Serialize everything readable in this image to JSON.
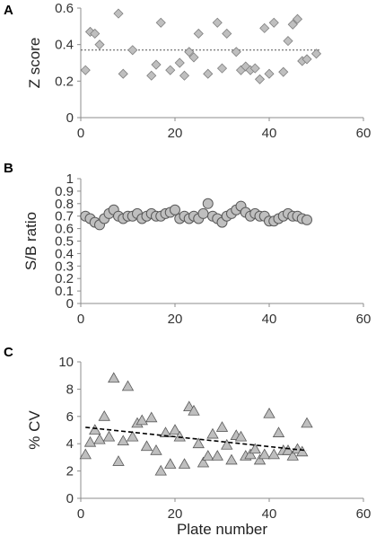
{
  "chart_data": [
    {
      "panel": "A",
      "type": "scatter",
      "marker": "diamond",
      "ylabel": "Z score",
      "xlim": [
        0,
        60
      ],
      "ylim": [
        0,
        0.6
      ],
      "xticks": [
        0,
        20,
        40,
        60
      ],
      "yticks": [
        0,
        0.2,
        0.4,
        0.6
      ],
      "ytick_labels": [
        "0",
        "0.2",
        "0.4",
        "0.6"
      ],
      "reference_line": {
        "y": 0.37,
        "style": "dotted"
      },
      "points": [
        [
          1,
          0.26
        ],
        [
          2,
          0.47
        ],
        [
          3,
          0.46
        ],
        [
          4,
          0.4
        ],
        [
          8,
          0.57
        ],
        [
          9,
          0.24
        ],
        [
          11,
          0.37
        ],
        [
          15,
          0.23
        ],
        [
          16,
          0.29
        ],
        [
          17,
          0.52
        ],
        [
          19,
          0.26
        ],
        [
          21,
          0.3
        ],
        [
          22,
          0.23
        ],
        [
          23,
          0.36
        ],
        [
          24,
          0.33
        ],
        [
          25,
          0.46
        ],
        [
          27,
          0.24
        ],
        [
          29,
          0.52
        ],
        [
          30,
          0.27
        ],
        [
          31,
          0.46
        ],
        [
          33,
          0.36
        ],
        [
          34,
          0.26
        ],
        [
          35,
          0.28
        ],
        [
          36,
          0.26
        ],
        [
          37,
          0.27
        ],
        [
          38,
          0.21
        ],
        [
          39,
          0.49
        ],
        [
          40,
          0.24
        ],
        [
          41,
          0.52
        ],
        [
          43,
          0.25
        ],
        [
          44,
          0.42
        ],
        [
          45,
          0.51
        ],
        [
          46,
          0.54
        ],
        [
          47,
          0.31
        ],
        [
          48,
          0.32
        ],
        [
          50,
          0.35
        ]
      ],
      "colors": {
        "marker_fill": "#bfbfbf",
        "marker_stroke": "#7f7f7f"
      }
    },
    {
      "panel": "B",
      "type": "scatter",
      "marker": "circle",
      "ylabel": "S/B ratio",
      "xlim": [
        0,
        60
      ],
      "ylim": [
        0,
        1
      ],
      "xticks": [
        0,
        20,
        40,
        60
      ],
      "yticks": [
        0,
        0.1,
        0.2,
        0.3,
        0.4,
        0.5,
        0.6,
        0.7,
        0.8,
        0.9,
        1
      ],
      "ytick_labels": [
        "0",
        "0.1",
        "0.2",
        "0.3",
        "0.4",
        "0.5",
        "0.6",
        "0.7",
        "0.8",
        "0.9",
        "1"
      ],
      "points": [
        [
          1,
          0.7
        ],
        [
          2,
          0.68
        ],
        [
          3,
          0.65
        ],
        [
          4,
          0.63
        ],
        [
          5,
          0.68
        ],
        [
          6,
          0.72
        ],
        [
          7,
          0.75
        ],
        [
          8,
          0.7
        ],
        [
          9,
          0.68
        ],
        [
          10,
          0.7
        ],
        [
          11,
          0.7
        ],
        [
          12,
          0.72
        ],
        [
          13,
          0.68
        ],
        [
          14,
          0.7
        ],
        [
          15,
          0.72
        ],
        [
          16,
          0.7
        ],
        [
          17,
          0.7
        ],
        [
          18,
          0.72
        ],
        [
          19,
          0.73
        ],
        [
          20,
          0.75
        ],
        [
          21,
          0.68
        ],
        [
          22,
          0.7
        ],
        [
          23,
          0.68
        ],
        [
          24,
          0.7
        ],
        [
          25,
          0.68
        ],
        [
          26,
          0.72
        ],
        [
          27,
          0.8
        ],
        [
          28,
          0.7
        ],
        [
          29,
          0.68
        ],
        [
          30,
          0.65
        ],
        [
          31,
          0.7
        ],
        [
          32,
          0.72
        ],
        [
          33,
          0.75
        ],
        [
          34,
          0.78
        ],
        [
          35,
          0.73
        ],
        [
          36,
          0.7
        ],
        [
          37,
          0.72
        ],
        [
          38,
          0.7
        ],
        [
          39,
          0.7
        ],
        [
          40,
          0.66
        ],
        [
          41,
          0.66
        ],
        [
          42,
          0.68
        ],
        [
          43,
          0.7
        ],
        [
          44,
          0.72
        ],
        [
          45,
          0.7
        ],
        [
          46,
          0.7
        ],
        [
          47,
          0.68
        ],
        [
          48,
          0.67
        ]
      ],
      "colors": {
        "marker_fill": "#bfbfbf",
        "marker_stroke": "#595959"
      }
    },
    {
      "panel": "C",
      "type": "scatter",
      "marker": "triangle",
      "ylabel": "% CV",
      "xlabel": "Plate number",
      "xlim": [
        0,
        60
      ],
      "ylim": [
        0,
        10
      ],
      "xticks": [
        0,
        20,
        40,
        60
      ],
      "yticks": [
        0,
        2,
        4,
        6,
        8,
        10
      ],
      "ytick_labels": [
        "0",
        "2",
        "4",
        "6",
        "8",
        "10"
      ],
      "trendline": {
        "x": [
          1,
          48
        ],
        "y": [
          5.2,
          3.5
        ],
        "style": "dashed"
      },
      "points": [
        [
          1,
          3.2
        ],
        [
          2,
          4.1
        ],
        [
          3,
          5.0
        ],
        [
          4,
          4.3
        ],
        [
          5,
          6.0
        ],
        [
          6,
          4.5
        ],
        [
          7,
          8.8
        ],
        [
          8,
          2.7
        ],
        [
          9,
          4.2
        ],
        [
          10,
          8.2
        ],
        [
          11,
          4.5
        ],
        [
          12,
          5.5
        ],
        [
          13,
          5.7
        ],
        [
          14,
          3.8
        ],
        [
          15,
          5.9
        ],
        [
          16,
          3.5
        ],
        [
          17,
          2.0
        ],
        [
          18,
          4.8
        ],
        [
          19,
          2.5
        ],
        [
          20,
          5.0
        ],
        [
          21,
          4.5
        ],
        [
          22,
          2.5
        ],
        [
          23,
          6.7
        ],
        [
          24,
          6.4
        ],
        [
          25,
          4.0
        ],
        [
          26,
          2.6
        ],
        [
          27,
          3.1
        ],
        [
          28,
          4.7
        ],
        [
          29,
          3.1
        ],
        [
          30,
          5.2
        ],
        [
          31,
          3.9
        ],
        [
          32,
          2.8
        ],
        [
          33,
          4.6
        ],
        [
          34,
          4.5
        ],
        [
          35,
          3.1
        ],
        [
          36,
          3.2
        ],
        [
          37,
          3.6
        ],
        [
          38,
          2.8
        ],
        [
          39,
          3.2
        ],
        [
          40,
          6.2
        ],
        [
          41,
          3.2
        ],
        [
          42,
          4.8
        ],
        [
          43,
          3.5
        ],
        [
          44,
          3.5
        ],
        [
          45,
          3.1
        ],
        [
          46,
          3.6
        ],
        [
          47,
          3.4
        ],
        [
          48,
          5.5
        ]
      ],
      "colors": {
        "marker_fill": "#bfbfbf",
        "marker_stroke": "#595959"
      }
    }
  ]
}
